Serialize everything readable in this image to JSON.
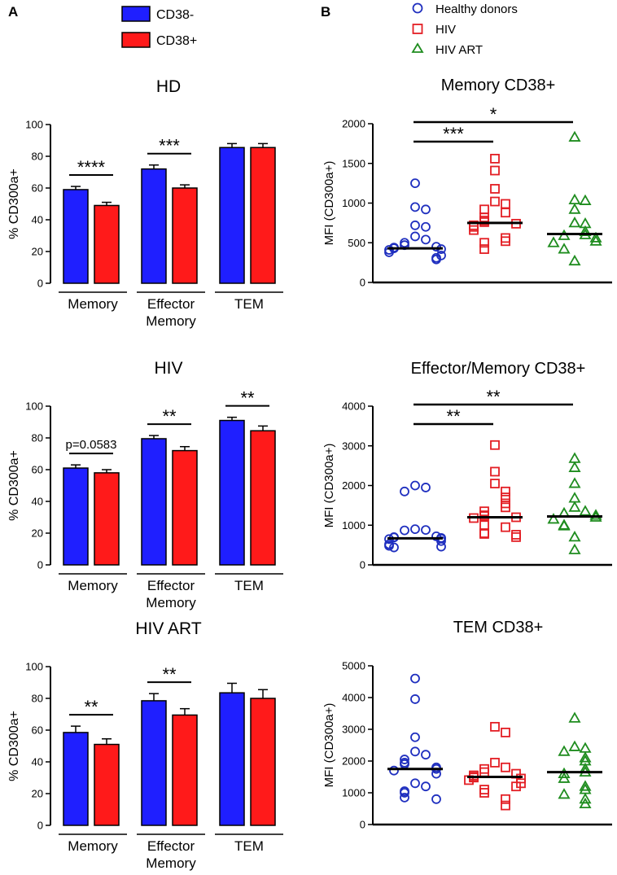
{
  "panel_labels": [
    "A",
    "B"
  ],
  "legend_bars": [
    {
      "label": "CD38-",
      "color": "#1f1fff"
    },
    {
      "label": "CD38+",
      "color": "#ff1a1a"
    }
  ],
  "legend_groups": [
    {
      "label": "Healthy donors",
      "color": "#1f2fbf",
      "marker": "circle"
    },
    {
      "label": "HIV",
      "color": "#e31e24",
      "marker": "square"
    },
    {
      "label": "HIV ART",
      "color": "#1e8c1e",
      "marker": "triangle"
    }
  ],
  "chart_data": [
    {
      "type": "bar",
      "title": "HD",
      "ylabel": "% CD300a+",
      "ylim": [
        0,
        100
      ],
      "yticks": [
        0,
        20,
        40,
        60,
        80,
        100
      ],
      "categories": [
        "Memory",
        "Effector\nMemory",
        "TEM"
      ],
      "series": [
        {
          "name": "CD38-",
          "values": [
            59,
            72,
            85.5
          ],
          "errors": [
            2,
            2.5,
            2.5
          ]
        },
        {
          "name": "CD38+",
          "values": [
            49,
            60,
            85.5
          ],
          "errors": [
            2,
            2,
            2.5
          ]
        }
      ],
      "significance": [
        {
          "category": 0,
          "label": "****"
        },
        {
          "category": 1,
          "label": "***"
        }
      ]
    },
    {
      "type": "bar",
      "title": "HIV",
      "ylabel": "% CD300a+",
      "ylim": [
        0,
        100
      ],
      "yticks": [
        0,
        20,
        40,
        60,
        80,
        100
      ],
      "categories": [
        "Memory",
        "Effector\nMemory",
        "TEM"
      ],
      "series": [
        {
          "name": "CD38-",
          "values": [
            61,
            79.5,
            91
          ],
          "errors": [
            2,
            2,
            2
          ]
        },
        {
          "name": "CD38+",
          "values": [
            58,
            72,
            84.5
          ],
          "errors": [
            2,
            2.5,
            3
          ]
        }
      ],
      "significance": [
        {
          "category": 0,
          "label": "p=0.0583"
        },
        {
          "category": 1,
          "label": "**"
        },
        {
          "category": 2,
          "label": "**"
        }
      ]
    },
    {
      "type": "bar",
      "title": "HIV ART",
      "ylabel": "% CD300a+",
      "ylim": [
        0,
        100
      ],
      "yticks": [
        0,
        20,
        40,
        60,
        80,
        100
      ],
      "categories": [
        "Memory",
        "Effector\nMemory",
        "TEM"
      ],
      "series": [
        {
          "name": "CD38-",
          "values": [
            58.5,
            78.5,
            83.5
          ],
          "errors": [
            4,
            4.5,
            6
          ]
        },
        {
          "name": "CD38+",
          "values": [
            51,
            69.5,
            80
          ],
          "errors": [
            3.5,
            4,
            5.5
          ]
        }
      ],
      "significance": [
        {
          "category": 0,
          "label": "**"
        },
        {
          "category": 1,
          "label": "**"
        }
      ]
    },
    {
      "type": "scatter",
      "title": "Memory CD38+",
      "ylabel": "MFI (CD300a+)",
      "ylim": [
        0,
        2000
      ],
      "yticks": [
        0,
        500,
        1000,
        1500,
        2000
      ],
      "groups": [
        {
          "name": "Healthy donors",
          "median": 430,
          "values": [
            1250,
            950,
            920,
            720,
            700,
            580,
            540,
            500,
            470,
            450,
            440,
            430,
            420,
            410,
            380,
            340,
            310,
            290
          ]
        },
        {
          "name": "HIV",
          "median": 750,
          "values": [
            1560,
            1410,
            1180,
            1020,
            990,
            920,
            880,
            820,
            780,
            760,
            740,
            720,
            700,
            660,
            560,
            520,
            500,
            420
          ]
        },
        {
          "name": "HIV ART",
          "median": 610,
          "values": [
            1830,
            1040,
            1030,
            920,
            750,
            740,
            640,
            600,
            590,
            560,
            520,
            500,
            420,
            270
          ]
        }
      ],
      "significance": [
        {
          "from": 0,
          "to": 1,
          "label": "***"
        },
        {
          "from": 0,
          "to": 2,
          "label": "*"
        }
      ]
    },
    {
      "type": "scatter",
      "title": "Effector/Memory CD38+",
      "ylabel": "MFI (CD300a+)",
      "ylim": [
        0,
        4000
      ],
      "yticks": [
        0,
        1000,
        2000,
        3000,
        4000
      ],
      "groups": [
        {
          "name": "Healthy donors",
          "median": 670,
          "values": [
            2000,
            1950,
            1850,
            900,
            880,
            870,
            720,
            700,
            690,
            680,
            670,
            660,
            650,
            600,
            520,
            480,
            460,
            440
          ]
        },
        {
          "name": "HIV",
          "median": 1200,
          "values": [
            3020,
            2350,
            2050,
            1850,
            1700,
            1550,
            1450,
            1350,
            1250,
            1230,
            1200,
            1180,
            1000,
            950,
            800,
            780,
            760,
            700
          ]
        },
        {
          "name": "HIV ART",
          "median": 1220,
          "values": [
            2680,
            2450,
            2050,
            1680,
            1450,
            1350,
            1300,
            1250,
            1200,
            1150,
            1000,
            980,
            700,
            380
          ]
        }
      ],
      "significance": [
        {
          "from": 0,
          "to": 1,
          "label": "**"
        },
        {
          "from": 0,
          "to": 2,
          "label": "**"
        }
      ]
    },
    {
      "type": "scatter",
      "title": "TEM CD38+",
      "ylabel": "MFI (CD300a+)",
      "ylim": [
        0,
        5000
      ],
      "yticks": [
        0,
        1000,
        2000,
        3000,
        4000,
        5000
      ],
      "groups": [
        {
          "name": "Healthy donors",
          "median": 1750,
          "values": [
            4600,
            3950,
            2750,
            2300,
            2200,
            2050,
            1950,
            1900,
            1800,
            1750,
            1700,
            1600,
            1300,
            1200,
            1050,
            1000,
            850,
            800
          ]
        },
        {
          "name": "HIV",
          "median": 1500,
          "values": [
            3080,
            2900,
            1950,
            1800,
            1750,
            1650,
            1600,
            1550,
            1500,
            1480,
            1450,
            1400,
            1300,
            1200,
            1100,
            1000,
            800,
            600
          ]
        },
        {
          "name": "HIV ART",
          "median": 1650,
          "values": [
            3350,
            2450,
            2400,
            2300,
            2100,
            2000,
            1750,
            1650,
            1600,
            1450,
            1200,
            1100,
            950,
            800,
            650
          ]
        }
      ],
      "significance": []
    }
  ]
}
